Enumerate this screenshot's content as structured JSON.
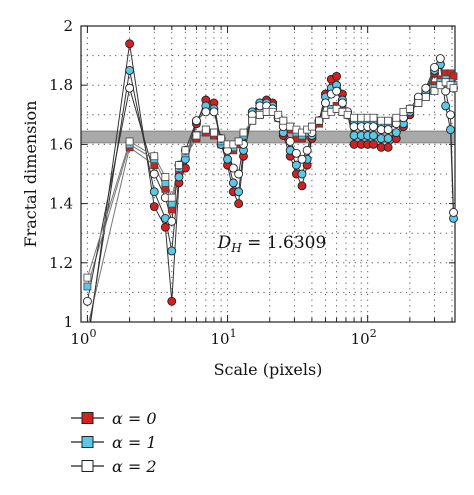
{
  "chart_data": {
    "type": "line",
    "title": "",
    "xlabel": "Scale (pixels)",
    "ylabel": "Fractal dimension",
    "xscale": "log",
    "xlim": [
      0.9,
      420
    ],
    "ylim": [
      1,
      2
    ],
    "x_ticks": [
      {
        "value": 1,
        "base": "10",
        "exp": "0"
      },
      {
        "value": 10,
        "base": "10",
        "exp": "1"
      },
      {
        "value": 100,
        "base": "10",
        "exp": "2"
      }
    ],
    "y_ticks": [
      {
        "value": 1,
        "label": "1"
      },
      {
        "value": 1.2,
        "label": "1.2"
      },
      {
        "value": 1.4,
        "label": "1.4"
      },
      {
        "value": 1.6,
        "label": "1.6"
      },
      {
        "value": 1.8,
        "label": "1.8"
      },
      {
        "value": 2,
        "label": "2"
      }
    ],
    "grid": "dotted",
    "legend_position": "below",
    "band": {
      "value": 1.6309,
      "low": 1.605,
      "high": 1.645,
      "color": "#a9a9a9"
    },
    "annotation": {
      "symbol": "D",
      "subscript": "H",
      "text": " = 1.6309",
      "x": 8.5,
      "y": 1.25
    },
    "x": [
      1,
      2,
      3,
      3.6,
      4,
      4.5,
      5,
      6,
      7,
      8,
      9,
      10,
      11,
      12,
      13,
      15,
      17,
      19,
      21,
      23,
      25,
      28,
      31,
      34,
      37,
      40,
      45,
      50,
      55,
      60,
      66,
      72,
      80,
      90,
      100,
      110,
      125,
      140,
      160,
      180,
      200,
      230,
      260,
      300,
      330,
      360,
      390,
      410
    ],
    "series": [
      {
        "name": "α = 0",
        "color": "#d42020",
        "marker": "circle",
        "values": [
          0.92,
          1.94,
          1.39,
          1.32,
          1.07,
          1.47,
          1.52,
          1.67,
          1.75,
          1.74,
          1.6,
          1.53,
          1.44,
          1.4,
          1.56,
          1.7,
          1.74,
          1.75,
          1.74,
          1.69,
          1.63,
          1.56,
          1.5,
          1.46,
          1.53,
          1.62,
          1.68,
          1.77,
          1.82,
          1.83,
          1.77,
          1.7,
          1.6,
          1.6,
          1.6,
          1.6,
          1.59,
          1.59,
          1.62,
          1.66,
          1.7,
          1.75,
          1.77,
          1.84,
          1.87,
          1.82,
          1.8,
          1.79
        ]
      },
      {
        "name": "",
        "color": "#d42020",
        "marker": "square",
        "values": [
          0.98,
          1.59,
          1.53,
          1.45,
          1.38,
          1.5,
          1.56,
          1.62,
          1.64,
          1.63,
          1.6,
          1.58,
          1.58,
          1.6,
          1.63,
          1.68,
          1.7,
          1.71,
          1.71,
          1.69,
          1.67,
          1.65,
          1.62,
          1.62,
          1.63,
          1.65,
          1.67,
          1.7,
          1.72,
          1.73,
          1.72,
          1.7,
          1.67,
          1.67,
          1.67,
          1.67,
          1.66,
          1.66,
          1.68,
          1.7,
          1.72,
          1.74,
          1.77,
          1.8,
          1.82,
          1.84,
          1.84,
          1.83
        ]
      },
      {
        "name": "α = 1",
        "color": "#5bc8e8",
        "marker": "circle",
        "values": [
          0.94,
          1.85,
          1.44,
          1.35,
          1.24,
          1.49,
          1.55,
          1.68,
          1.73,
          1.72,
          1.6,
          1.55,
          1.47,
          1.44,
          1.58,
          1.71,
          1.74,
          1.74,
          1.73,
          1.69,
          1.64,
          1.58,
          1.53,
          1.5,
          1.55,
          1.63,
          1.68,
          1.76,
          1.79,
          1.8,
          1.75,
          1.7,
          1.63,
          1.63,
          1.63,
          1.63,
          1.62,
          1.62,
          1.64,
          1.67,
          1.71,
          1.75,
          1.78,
          1.85,
          1.87,
          1.73,
          1.65,
          1.35
        ]
      },
      {
        "name": "",
        "color": "#5bc8e8",
        "marker": "square",
        "values": [
          1.12,
          1.6,
          1.55,
          1.47,
          1.4,
          1.52,
          1.57,
          1.63,
          1.65,
          1.64,
          1.61,
          1.59,
          1.59,
          1.61,
          1.63,
          1.68,
          1.7,
          1.71,
          1.71,
          1.69,
          1.68,
          1.66,
          1.64,
          1.63,
          1.64,
          1.66,
          1.68,
          1.7,
          1.72,
          1.72,
          1.71,
          1.7,
          1.68,
          1.68,
          1.68,
          1.68,
          1.67,
          1.67,
          1.68,
          1.7,
          1.72,
          1.74,
          1.76,
          1.79,
          1.81,
          1.82,
          1.81,
          1.8
        ]
      },
      {
        "name": "α = 2",
        "color": "#ffffff",
        "marker": "circle",
        "values": [
          1.07,
          1.79,
          1.5,
          1.42,
          1.34,
          1.53,
          1.58,
          1.68,
          1.71,
          1.71,
          1.62,
          1.58,
          1.52,
          1.5,
          1.6,
          1.7,
          1.73,
          1.73,
          1.72,
          1.69,
          1.66,
          1.61,
          1.57,
          1.55,
          1.58,
          1.64,
          1.68,
          1.74,
          1.77,
          1.78,
          1.74,
          1.71,
          1.66,
          1.66,
          1.66,
          1.66,
          1.65,
          1.65,
          1.67,
          1.69,
          1.72,
          1.76,
          1.79,
          1.86,
          1.89,
          1.78,
          1.7,
          1.37
        ]
      },
      {
        "name": "",
        "color": "#ffffff",
        "marker": "square",
        "values": [
          1.15,
          1.61,
          1.56,
          1.49,
          1.42,
          1.53,
          1.58,
          1.63,
          1.65,
          1.64,
          1.62,
          1.6,
          1.6,
          1.61,
          1.64,
          1.68,
          1.7,
          1.71,
          1.71,
          1.7,
          1.68,
          1.66,
          1.65,
          1.64,
          1.65,
          1.66,
          1.68,
          1.7,
          1.71,
          1.72,
          1.71,
          1.7,
          1.69,
          1.69,
          1.69,
          1.69,
          1.68,
          1.68,
          1.69,
          1.71,
          1.72,
          1.74,
          1.76,
          1.78,
          1.8,
          1.81,
          1.8,
          1.79
        ]
      }
    ],
    "legend": [
      {
        "label": "α = 0",
        "color": "#d42020"
      },
      {
        "label": "α = 1",
        "color": "#5bc8e8"
      },
      {
        "label": "α = 2",
        "color": "#ffffff"
      }
    ]
  }
}
